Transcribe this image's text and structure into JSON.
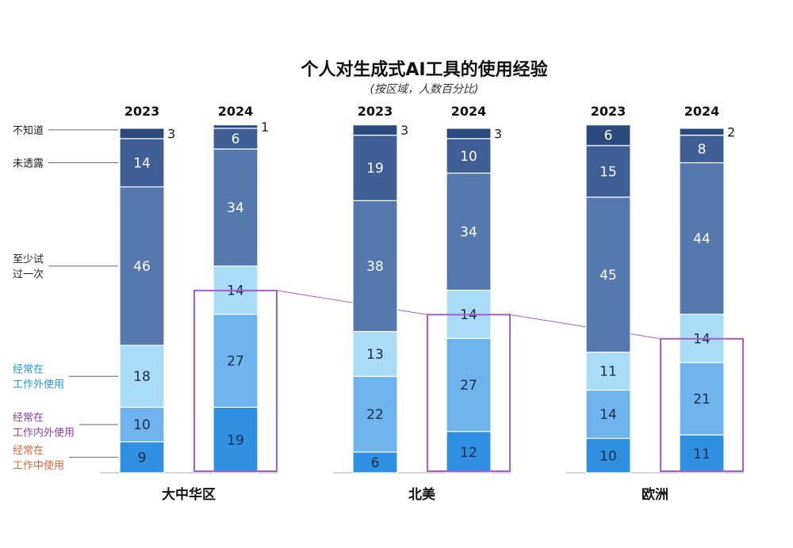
{
  "chart_data": {
    "type": "bar",
    "stacked": true,
    "title": "个人对生成式AI工具的使用经验",
    "subtitle": "(按区域，人数百分比)",
    "regions": [
      {
        "name": "大中华区",
        "bars": [
          {
            "year": "2023",
            "values": [
              9,
              10,
              18,
              46,
              14,
              3
            ]
          },
          {
            "year": "2024",
            "values": [
              19,
              27,
              14,
              34,
              6,
              1
            ]
          }
        ]
      },
      {
        "name": "北美",
        "bars": [
          {
            "year": "2023",
            "values": [
              6,
              22,
              13,
              38,
              19,
              3
            ]
          },
          {
            "year": "2024",
            "values": [
              12,
              27,
              14,
              34,
              10,
              3
            ]
          }
        ]
      },
      {
        "name": "欧洲",
        "bars": [
          {
            "year": "2023",
            "values": [
              10,
              14,
              11,
              45,
              15,
              6
            ]
          },
          {
            "year": "2024",
            "values": [
              11,
              21,
              14,
              44,
              8,
              2
            ]
          }
        ]
      }
    ],
    "categories": [
      {
        "lines": [
          "经常在",
          "工作中使用"
        ],
        "color": "#2f8fe0",
        "label_color": "#e0663a"
      },
      {
        "lines": [
          "经常在",
          "工作内外使用"
        ],
        "color": "#6fb3ec",
        "label_color": "#8a3fb0"
      },
      {
        "lines": [
          "经常在",
          "工作外使用"
        ],
        "color": "#a9dcf6",
        "label_color": "#1f9ad6"
      },
      {
        "lines": [
          "至少试",
          "过一次"
        ],
        "color": "#5579ae",
        "label_color": "#222222"
      },
      {
        "lines": [
          "未透露"
        ],
        "color": "#3f5f96",
        "label_color": "#222222"
      },
      {
        "lines": [
          "不知道"
        ],
        "color": "#2b4a7e",
        "label_color": "#222222"
      }
    ],
    "highlight_color": "#a65ec9",
    "ylim": [
      0,
      100
    ]
  }
}
